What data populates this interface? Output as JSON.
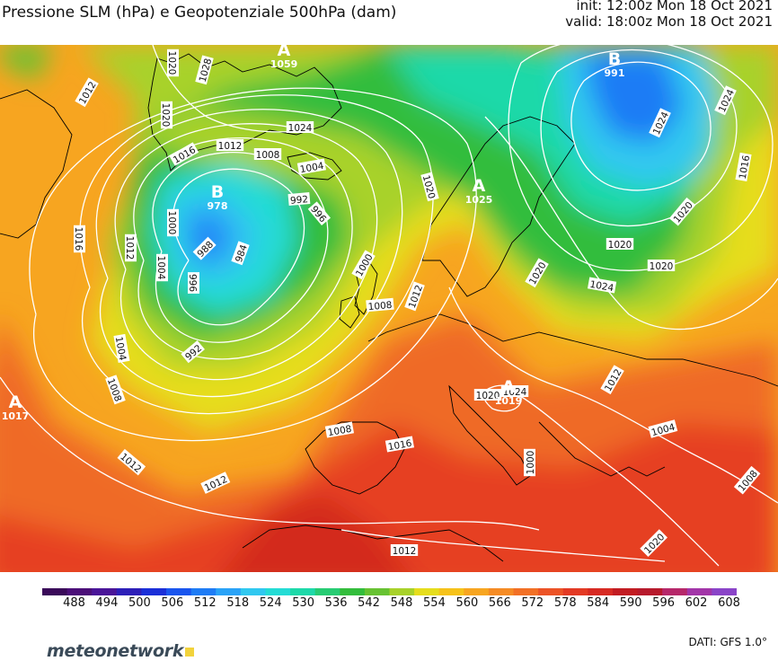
{
  "header": {
    "title": "Pressione SLM (hPa) e Geopotenziale 500hPa (dam)",
    "init": "init: 12:00z Mon 18 Oct 2021",
    "valid": "valid: 18:00z Mon 18 Oct 2021"
  },
  "colorbar": {
    "ticks": [
      "488",
      "494",
      "500",
      "506",
      "512",
      "518",
      "524",
      "530",
      "536",
      "542",
      "548",
      "554",
      "560",
      "566",
      "572",
      "578",
      "584",
      "590",
      "596",
      "602",
      "608"
    ],
    "colors": [
      "#3a0a59",
      "#4b0f78",
      "#4a1598",
      "#2d1fb8",
      "#1b2fd8",
      "#1a55ee",
      "#1f7cf5",
      "#2aa3f7",
      "#30c8f0",
      "#24dcd5",
      "#1ed9a9",
      "#27cc73",
      "#33bd3c",
      "#67c232",
      "#a8d22a",
      "#e6dd1c",
      "#f6c21a",
      "#f7a520",
      "#f58b24",
      "#f27025",
      "#ec5326",
      "#e33a24",
      "#d72a23",
      "#c21c22",
      "#b71a2c",
      "#b6286a",
      "#a235a8",
      "#8a44c8"
    ]
  },
  "highs_lows": [
    {
      "letter": "A",
      "value": "1059"
    },
    {
      "letter": "B",
      "value": "991"
    },
    {
      "letter": "B",
      "value": "978"
    },
    {
      "letter": "A",
      "value": "1025"
    },
    {
      "letter": "A",
      "value": "1017"
    },
    {
      "letter": "A",
      "value": "1019"
    }
  ],
  "isobar_labels": [
    "1020",
    "1028",
    "1020",
    "1012",
    "1016",
    "1012",
    "1008",
    "1004",
    "1024",
    "992",
    "996",
    "1020",
    "1000",
    "1012",
    "988",
    "984",
    "1004",
    "996",
    "992",
    "1004",
    "1008",
    "1012",
    "1000",
    "1008",
    "1012",
    "1020",
    "1024",
    "1020",
    "1024",
    "1024",
    "1020",
    "1016",
    "1020",
    "1012",
    "1008",
    "1016",
    "1012",
    "1000",
    "1004",
    "1008",
    "1012",
    "1020",
    "1016",
    "1024",
    "1020"
  ],
  "footer": {
    "logo": "meteonetwork",
    "source": "DATI: GFS 1.0°"
  },
  "colors": {
    "isobar": "#ffffff",
    "coastline": "#000000"
  }
}
